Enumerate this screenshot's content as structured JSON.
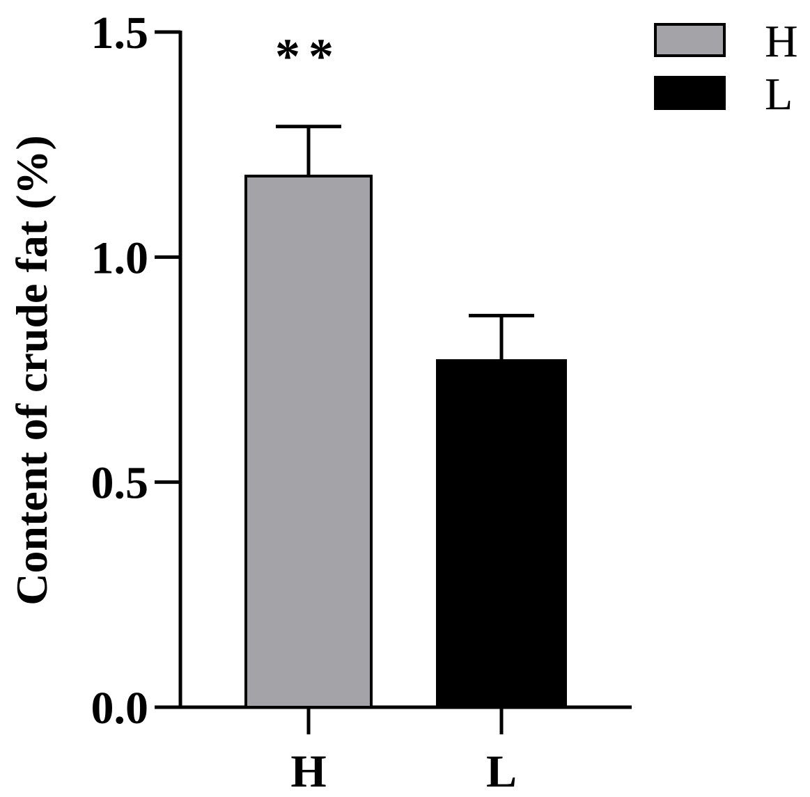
{
  "chart_data": {
    "type": "bar",
    "categories": [
      "H",
      "L"
    ],
    "values": [
      1.18,
      0.77
    ],
    "error": [
      0.11,
      0.1
    ],
    "colors": [
      "#a4a3a7",
      "#000000"
    ],
    "significance": [
      {
        "category": "H",
        "label": "**"
      }
    ],
    "title": "",
    "xlabel": "",
    "ylabel": "Content of crude fat (%)",
    "ylim": [
      0,
      1.5
    ],
    "yticks": [
      0.0,
      0.5,
      1.0,
      1.5
    ],
    "ytick_labels": [
      "0.0",
      "0.5",
      "1.0",
      "1.5"
    ],
    "legend": {
      "position": "top-right",
      "entries": [
        {
          "label": "H",
          "color": "#a4a3a7"
        },
        {
          "label": "L",
          "color": "#000000"
        }
      ]
    }
  }
}
